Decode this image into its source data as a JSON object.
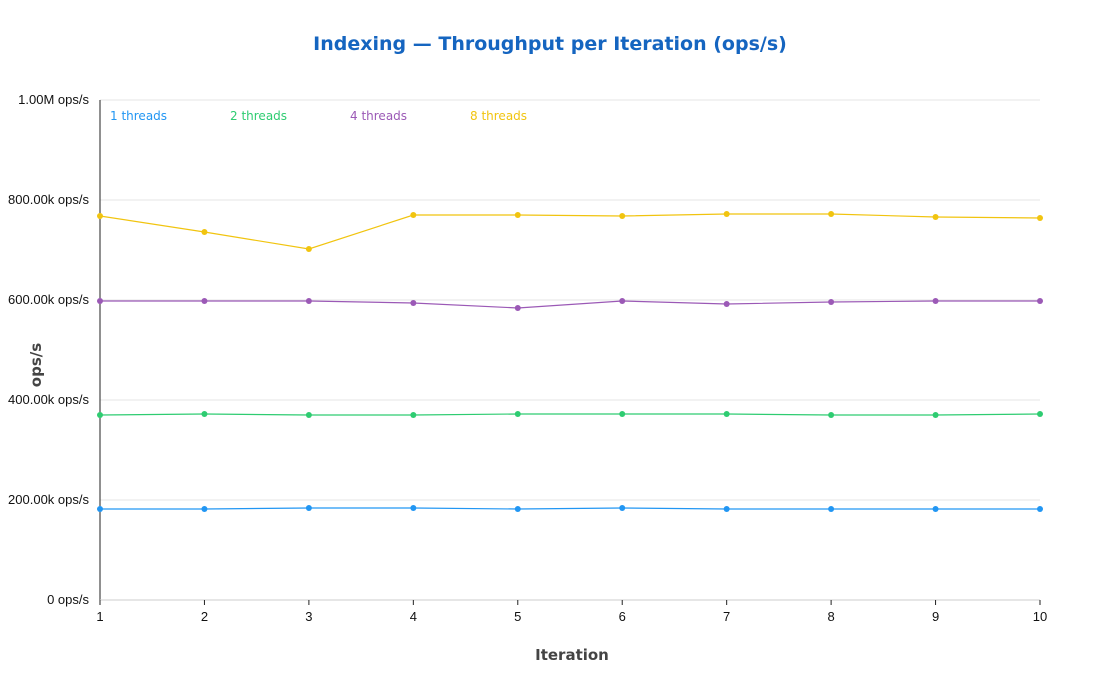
{
  "chart_data": {
    "type": "line",
    "title": "Indexing — Throughput per Iteration (ops/s)",
    "xlabel": "Iteration",
    "ylabel": "ops/s",
    "x": [
      1,
      2,
      3,
      4,
      5,
      6,
      7,
      8,
      9,
      10
    ],
    "ylim": [
      0,
      1000000
    ],
    "yticks": [
      0,
      200000,
      400000,
      600000,
      800000,
      1000000
    ],
    "ytick_labels": [
      "0 ops/s",
      "200.00k ops/s",
      "400.00k ops/s",
      "600.00k ops/s",
      "800.00k ops/s",
      "1.00M ops/s"
    ],
    "xtick_labels": [
      "1",
      "2",
      "3",
      "4",
      "5",
      "6",
      "7",
      "8",
      "9",
      "10"
    ],
    "grid": true,
    "legend_position": "top-left",
    "series": [
      {
        "name": "1 threads",
        "color": "#2196f3",
        "values": [
          182000,
          182000,
          184000,
          184000,
          182000,
          184000,
          182000,
          182000,
          182000,
          182000
        ]
      },
      {
        "name": "2 threads",
        "color": "#2ecc71",
        "values": [
          370000,
          372000,
          370000,
          370000,
          372000,
          372000,
          372000,
          370000,
          370000,
          372000
        ]
      },
      {
        "name": "4 threads",
        "color": "#9b59b6",
        "values": [
          598000,
          598000,
          598000,
          594000,
          584000,
          598000,
          592000,
          596000,
          598000,
          598000
        ]
      },
      {
        "name": "8 threads",
        "color": "#f1c40f",
        "values": [
          768000,
          736000,
          702000,
          770000,
          770000,
          768000,
          772000,
          772000,
          766000,
          764000
        ]
      }
    ]
  }
}
